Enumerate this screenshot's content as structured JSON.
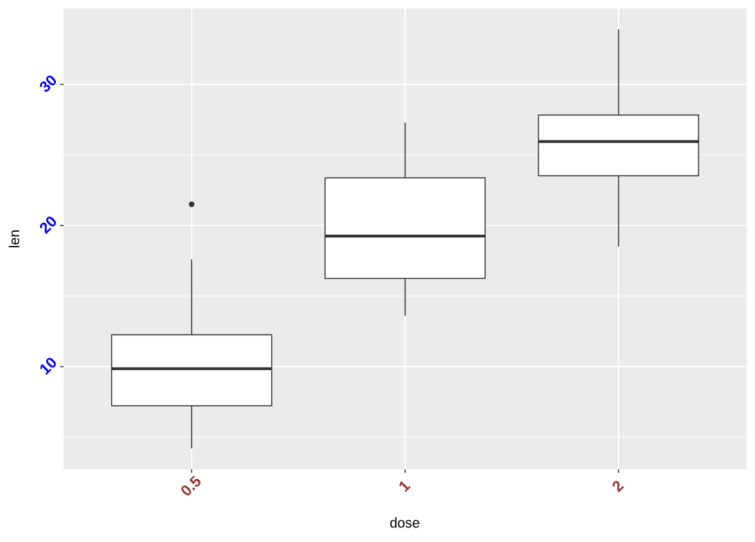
{
  "chart_data": {
    "type": "box",
    "x_label": "dose",
    "y_label": "len",
    "categories": [
      "0.5",
      "1",
      "2"
    ],
    "boxes": [
      {
        "min": 4.2,
        "q1": 7.225,
        "median": 9.85,
        "q3": 12.25,
        "max": 17.6,
        "outliers": [
          21.5
        ]
      },
      {
        "min": 13.6,
        "q1": 16.25,
        "median": 19.25,
        "q3": 23.375,
        "max": 27.3,
        "outliers": []
      },
      {
        "min": 18.5,
        "q1": 23.525,
        "median": 25.95,
        "q3": 27.825,
        "max": 33.9,
        "outliers": []
      }
    ],
    "ylim": [
      2.715,
      35.385
    ],
    "yticks": [
      10,
      20,
      30
    ],
    "y_minor_grid": [
      5,
      15,
      25
    ],
    "grid": true,
    "box_fill": "#ffffff",
    "box_stroke": "#333333",
    "xtick_color": "#993333",
    "ytick_color": "#0000ff"
  }
}
